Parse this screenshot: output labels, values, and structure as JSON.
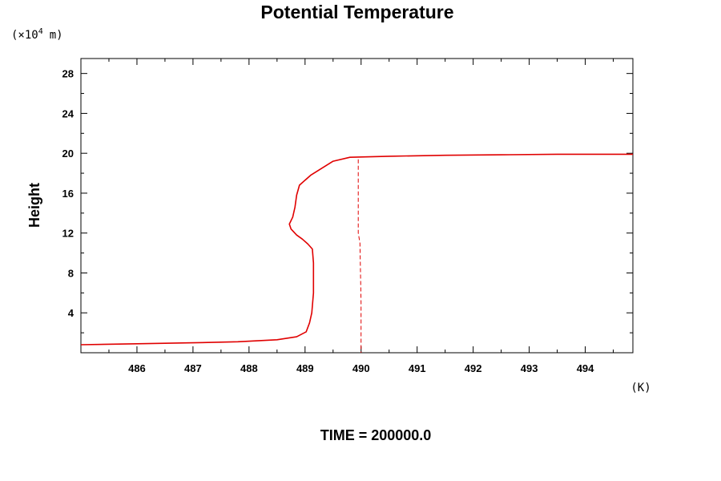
{
  "chart_data": {
    "type": "line",
    "title": "Potential Temperature",
    "ylabel": "Height",
    "y_unit_prefix": "(×10",
    "y_unit_exp": "4",
    "y_unit_suffix": "m)",
    "x_unit": "(K)",
    "footer": "TIME = 200000.0",
    "xlim": [
      485.0,
      494.85
    ],
    "ylim": [
      0,
      29.5
    ],
    "x_ticks": [
      486,
      487,
      488,
      489,
      490,
      491,
      492,
      493,
      494
    ],
    "y_ticks": [
      4,
      8,
      12,
      16,
      20,
      24,
      28
    ],
    "grid": false,
    "series": [
      {
        "style": "solid",
        "color": "#e00000",
        "x": [
          485.0,
          486.0,
          487.0,
          487.8,
          488.5,
          488.85,
          489.02,
          489.08,
          489.12,
          489.15,
          489.15,
          489.13,
          489.05,
          488.95,
          488.85,
          488.75,
          488.72,
          488.78,
          488.82,
          488.85,
          488.9,
          489.1,
          489.3,
          489.5,
          489.8,
          490.5,
          491.5,
          492.5,
          493.5,
          494.85
        ],
        "y": [
          0.8,
          0.9,
          1.0,
          1.1,
          1.3,
          1.6,
          2.1,
          3.0,
          4.0,
          6.0,
          9.0,
          10.4,
          10.9,
          11.4,
          11.8,
          12.4,
          12.9,
          13.6,
          14.6,
          15.8,
          16.8,
          17.8,
          18.5,
          19.2,
          19.6,
          19.7,
          19.8,
          19.85,
          19.9,
          19.9
        ]
      },
      {
        "style": "dashed",
        "color": "#e00000",
        "x": [
          489.95,
          489.95,
          489.98,
          490.0,
          490.0
        ],
        "y": [
          19.4,
          12.0,
          11.0,
          5.0,
          0.0
        ]
      }
    ]
  }
}
